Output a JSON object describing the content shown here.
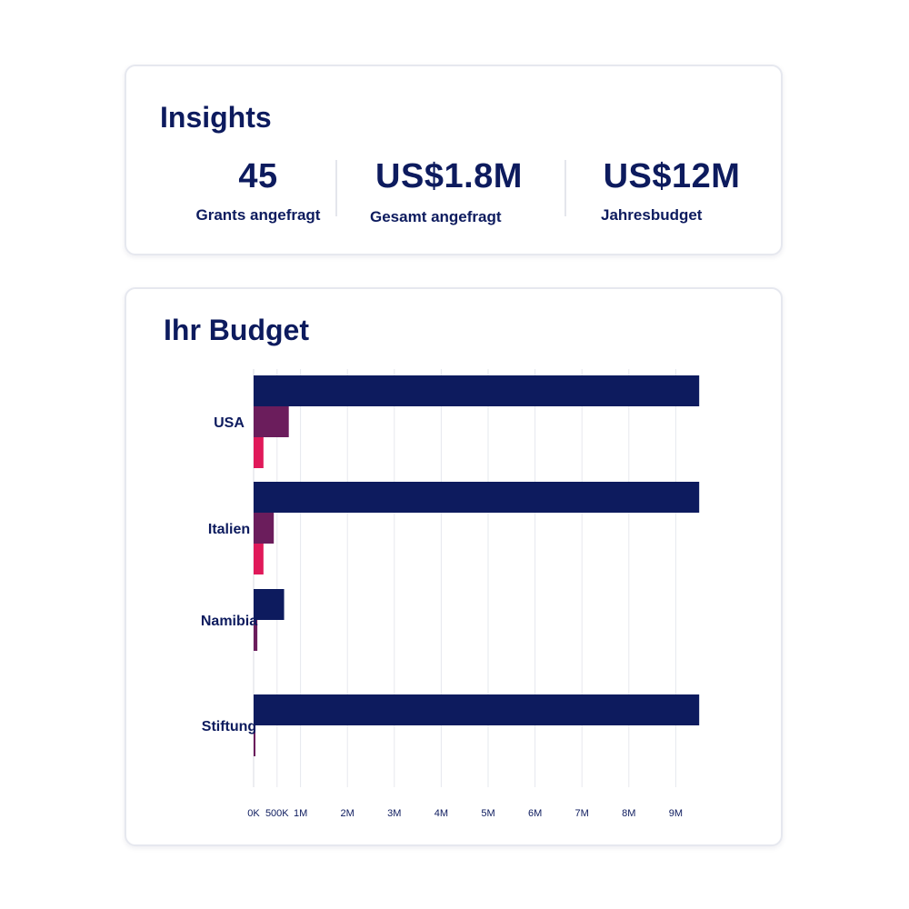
{
  "insights": {
    "title": "Insights",
    "stats": [
      {
        "value": "45",
        "label": "Grants angefragt"
      },
      {
        "value": "US$1.8M",
        "label": "Gesamt angefragt"
      },
      {
        "value": "US$12M",
        "label": "Jahresbudget"
      }
    ]
  },
  "budget": {
    "title": "Ihr Budget"
  },
  "chart_data": {
    "type": "bar",
    "orientation": "horizontal",
    "title": "Ihr Budget",
    "xlabel": "",
    "ylabel": "",
    "categories": [
      "USA",
      "Italien",
      "Namibia",
      "Stiftung"
    ],
    "series": [
      {
        "color": "#0d1b5e",
        "values": [
          9500000,
          9500000,
          650000,
          9500000
        ]
      },
      {
        "color": "#6b1d5c",
        "values": [
          750000,
          430000,
          80000,
          30000
        ]
      },
      {
        "color": "#e0195a",
        "values": [
          210000,
          210000,
          null,
          null
        ]
      }
    ],
    "xlim": [
      0,
      9500000
    ],
    "xticks": [
      {
        "value": 0,
        "label": "0K"
      },
      {
        "value": 500000,
        "label": "500K"
      },
      {
        "value": 1000000,
        "label": "1M"
      },
      {
        "value": 2000000,
        "label": "2M"
      },
      {
        "value": 3000000,
        "label": "3M"
      },
      {
        "value": 4000000,
        "label": "4M"
      },
      {
        "value": 5000000,
        "label": "5M"
      },
      {
        "value": 6000000,
        "label": "6M"
      },
      {
        "value": 7000000,
        "label": "7M"
      },
      {
        "value": 8000000,
        "label": "8M"
      },
      {
        "value": 9000000,
        "label": "9M"
      }
    ],
    "grid": true,
    "legend": "none"
  }
}
